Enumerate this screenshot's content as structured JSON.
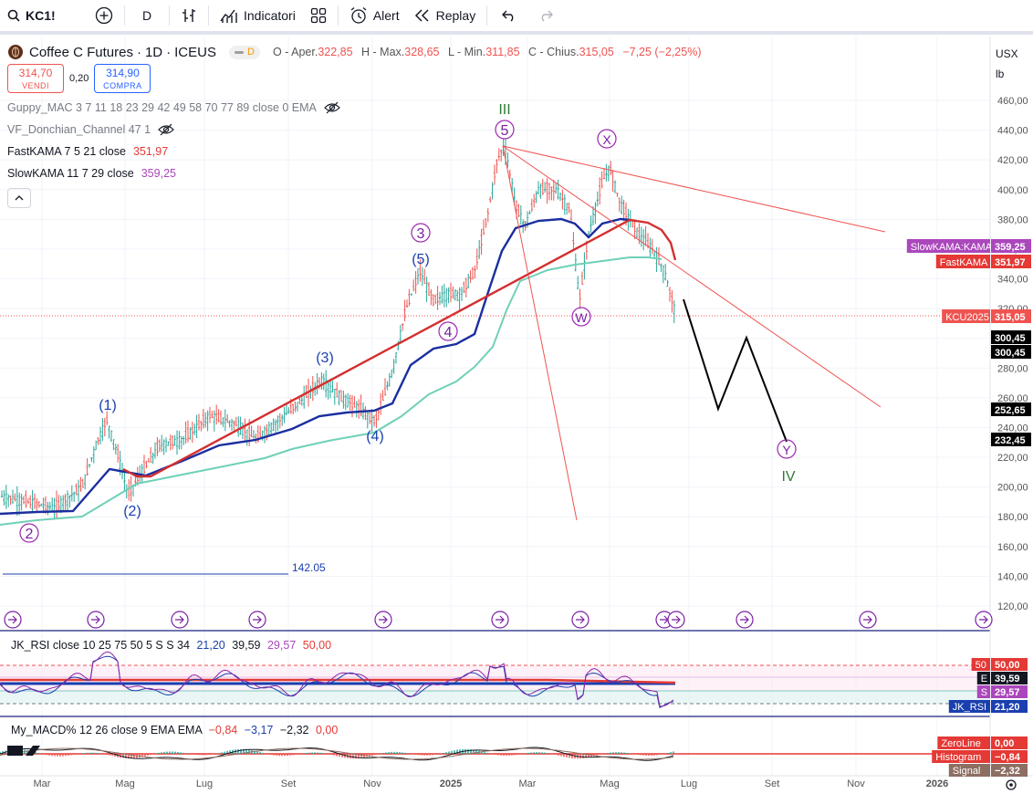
{
  "toolbar": {
    "symbol": "KC1!",
    "interval": "D",
    "indicators_label": "Indicatori",
    "alert_label": "Alert",
    "replay_label": "Replay"
  },
  "legend": {
    "title": "Coffee C Futures",
    "interval": "1D",
    "exchange": "ICEUS",
    "delay_badge": "D",
    "open_label": "O - Aper.",
    "open": "322,85",
    "high_label": "H - Max.",
    "high": "328,65",
    "low_label": "L - Min.",
    "low": "311,85",
    "close_label": "C - Chius.",
    "close": "315,05",
    "change": "−7,25 (−2,25%)",
    "sell_price": "314,70",
    "sell_label": "VENDI",
    "spread": "0,20",
    "buy_price": "314,90",
    "buy_label": "COMPRA"
  },
  "indicators": [
    {
      "label": "Guppy_MAC 3 7 11 18 23 29 42 49 58 70 77 89 close 0 EMA",
      "value": ""
    },
    {
      "label": "VF_Donchian_Channel 47 1",
      "value": ""
    },
    {
      "label": "FastKAMA 7 5 21 close",
      "value": "351,97"
    },
    {
      "label": "SlowKAMA 11 7 29 close",
      "value": "359,25"
    }
  ],
  "price_axis": {
    "currency": "USX",
    "unit": "lb",
    "ticks": [
      "460,00",
      "440,00",
      "420,00",
      "400,00",
      "380,00",
      "360,00",
      "340,00",
      "320,00",
      "300,00",
      "280,00",
      "260,00",
      "240,00",
      "220,00",
      "200,00",
      "180,00",
      "160,00",
      "140,00",
      "120,00"
    ],
    "tags": [
      {
        "label": "SlowKAMA:KAMA",
        "value": "359,25",
        "color": "#ab47bc"
      },
      {
        "label": "FastKAMA",
        "value": "351,97",
        "color": "#e53935"
      },
      {
        "label": "KCU2025",
        "value": "315,05",
        "color": "#ef5350"
      },
      {
        "label": "",
        "value": "300,45",
        "color": "#000000"
      },
      {
        "label": "",
        "value": "300,45",
        "color": "#000000"
      },
      {
        "label": "",
        "value": "252,65",
        "color": "#000000"
      },
      {
        "label": "",
        "value": "232,45",
        "color": "#000000"
      }
    ]
  },
  "time_axis": [
    "Mar",
    "Mag",
    "Lug",
    "Set",
    "Nov",
    "2025",
    "Mar",
    "Mag",
    "Lug",
    "Set",
    "Nov",
    "2026"
  ],
  "annotations": {
    "wave_labels": [
      "2",
      "(1)",
      "(2)",
      "(3)",
      "(4)",
      "3",
      "(5)",
      "4",
      "III",
      "5",
      "W",
      "X",
      "Y",
      "IV"
    ],
    "level_value": "142.05"
  },
  "rsi": {
    "title": "JK_RSI close 10 25 75 50 5 S S 34",
    "values": [
      "21,20",
      "39,59",
      "29,57",
      "50,00"
    ],
    "tags": [
      {
        "label": "50",
        "value": "50,00",
        "color": "#e53935"
      },
      {
        "label": "E",
        "value": "39,59",
        "color": "#131722"
      },
      {
        "label": "S",
        "value": "29,57",
        "color": "#ab47bc"
      },
      {
        "label": "JK_RSI",
        "value": "21,20",
        "color": "#1a3fae"
      }
    ]
  },
  "macd": {
    "title": "My_MACD% 12 26 close 9 EMA EMA",
    "values": [
      "−0,84",
      "−3,17",
      "−2,32",
      "0,00"
    ],
    "tags": [
      {
        "label": "ZeroLine",
        "value": "0,00",
        "color": "#e53935"
      },
      {
        "label": "Histogram",
        "value": "−0,84",
        "color": "#e53935"
      },
      {
        "label": "Signal",
        "value": "−2,32",
        "color": "#8d6e63"
      }
    ]
  }
}
